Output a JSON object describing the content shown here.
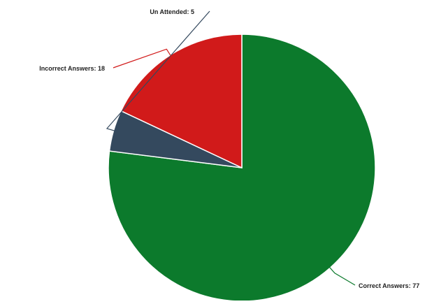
{
  "chart_data": {
    "type": "pie",
    "slices": [
      {
        "name": "Correct Answers",
        "value": 77,
        "label": "Correct Answers: 77",
        "color": "#0c7a2c"
      },
      {
        "name": "Un Attended",
        "value": 5,
        "label": "Un Attended: 5",
        "color": "#34495e"
      },
      {
        "name": "Incorrect Answers",
        "value": 18,
        "label": "Incorrect Answers: 18",
        "color": "#d11a1a"
      }
    ],
    "start_angle_deg": 0,
    "direction": "clockwise",
    "legend": "none"
  }
}
